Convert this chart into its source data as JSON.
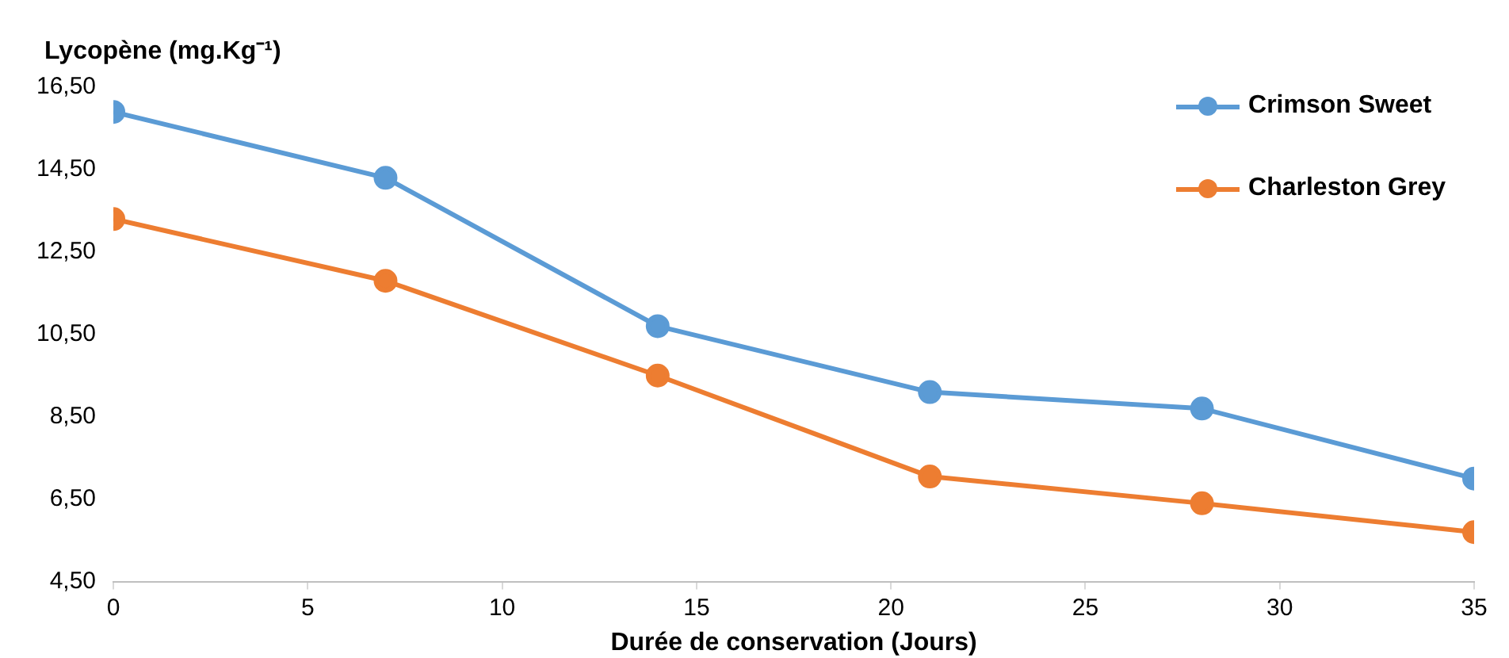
{
  "chart_data": {
    "type": "line",
    "ylabel": "Lycopène (mg.Kg⁻¹)",
    "xlabel": "Durée de conservation (Jours)",
    "x": [
      0,
      7,
      14,
      21,
      28,
      35
    ],
    "series": [
      {
        "name": "Crimson Sweet",
        "color": "#5b9bd5",
        "values": [
          15.9,
          14.3,
          10.7,
          9.1,
          8.7,
          7.0
        ]
      },
      {
        "name": "Charleston Grey",
        "color": "#ed7d31",
        "values": [
          13.3,
          11.8,
          9.5,
          7.05,
          6.4,
          5.7
        ]
      }
    ],
    "xlim": [
      0,
      35
    ],
    "xticks": [
      0,
      5,
      10,
      15,
      20,
      25,
      30,
      35
    ],
    "ylim": [
      4.5,
      16.5
    ],
    "yticks": [
      {
        "value": 4.5,
        "label": "4,50"
      },
      {
        "value": 6.5,
        "label": "6,50"
      },
      {
        "value": 8.5,
        "label": "8,50"
      },
      {
        "value": 10.5,
        "label": "10,50"
      },
      {
        "value": 12.5,
        "label": "12,50"
      },
      {
        "value": 14.5,
        "label": "14,50"
      },
      {
        "value": 16.5,
        "label": "16,50"
      }
    ],
    "grid": false,
    "legend": "top right",
    "marker": "circle",
    "line_style": "solid"
  }
}
